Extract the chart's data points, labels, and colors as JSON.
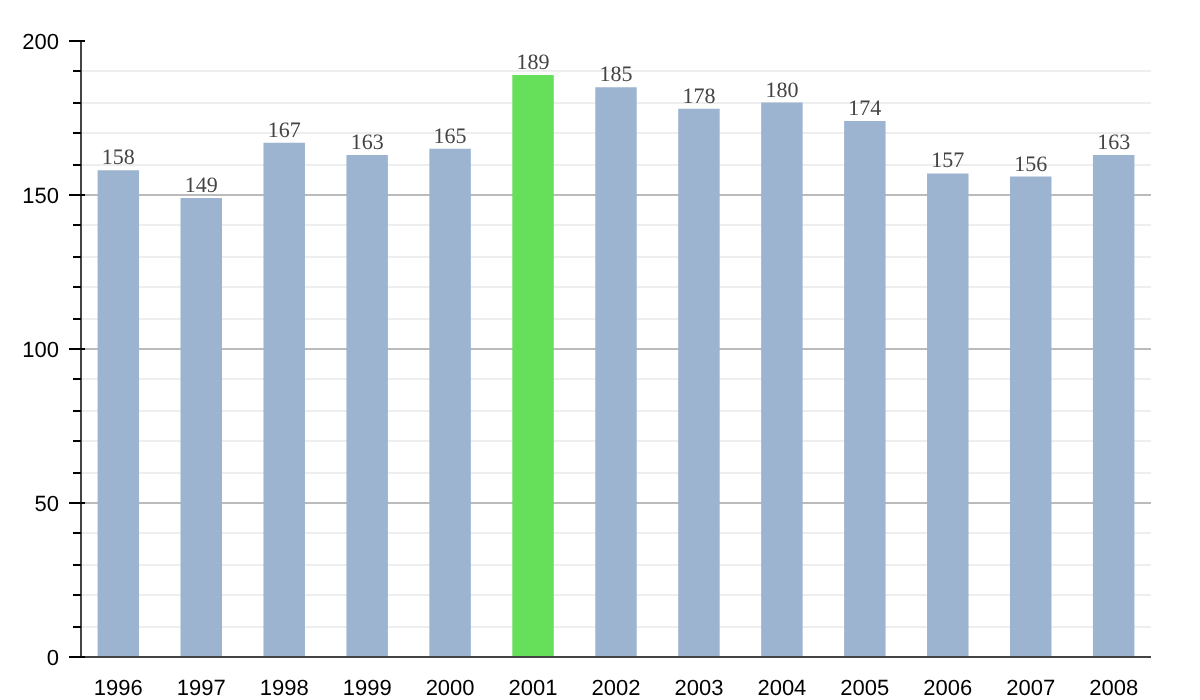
{
  "chart_data": {
    "type": "bar",
    "categories": [
      "1996",
      "1997",
      "1998",
      "1999",
      "2000",
      "2001",
      "2002",
      "2003",
      "2004",
      "2005",
      "2006",
      "2007",
      "2008"
    ],
    "values": [
      158,
      149,
      167,
      163,
      165,
      189,
      185,
      178,
      180,
      174,
      157,
      156,
      163
    ],
    "colors": [
      "#9cb4cf",
      "#9cb4cf",
      "#9cb4cf",
      "#9cb4cf",
      "#9cb4cf",
      "#66e05a",
      "#9cb4cf",
      "#9cb4cf",
      "#9cb4cf",
      "#9cb4cf",
      "#9cb4cf",
      "#9cb4cf",
      "#9cb4cf"
    ],
    "ylim": [
      0,
      200
    ],
    "yticks": [
      0,
      50,
      100,
      150,
      200
    ],
    "grid": "y",
    "data_labels": true
  }
}
